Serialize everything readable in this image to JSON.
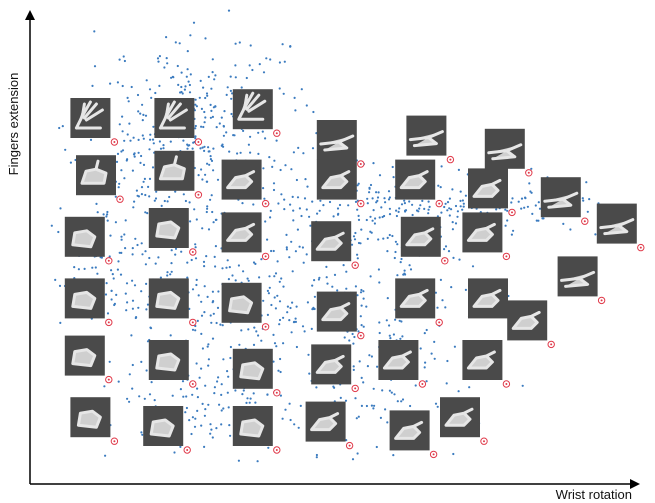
{
  "chart_data": {
    "type": "scatter",
    "xlabel": "Wrist rotation",
    "ylabel": "Fingers extension",
    "xlim": [
      0,
      1
    ],
    "ylim": [
      0,
      1
    ],
    "grid": false,
    "legend": "none",
    "point_color": "#3b7bbf",
    "marker_color": "#e03a4a",
    "thumbnail_color": "#4a4a4a",
    "hand_color": "#e6e6e6",
    "point_count": 1400,
    "points_seed": 7,
    "density_regions": [
      {
        "cx": 0.3,
        "cy": 0.8,
        "rx": 0.14,
        "ry": 0.15,
        "weight": 0.18
      },
      {
        "cx": 0.18,
        "cy": 0.55,
        "rx": 0.16,
        "ry": 0.28,
        "weight": 0.22
      },
      {
        "cx": 0.38,
        "cy": 0.4,
        "rx": 0.16,
        "ry": 0.3,
        "weight": 0.22
      },
      {
        "cx": 0.62,
        "cy": 0.58,
        "rx": 0.14,
        "ry": 0.1,
        "weight": 0.1
      },
      {
        "cx": 0.78,
        "cy": 0.6,
        "rx": 0.18,
        "ry": 0.05,
        "weight": 0.1
      },
      {
        "cx": 0.6,
        "cy": 0.25,
        "rx": 0.16,
        "ry": 0.18,
        "weight": 0.12
      },
      {
        "cx": 0.3,
        "cy": 0.15,
        "rx": 0.16,
        "ry": 0.1,
        "weight": 0.06
      }
    ],
    "thumbnails": [
      {
        "x": 0.09,
        "y": 0.8,
        "pose": "open"
      },
      {
        "x": 0.24,
        "y": 0.8,
        "pose": "open"
      },
      {
        "x": 0.38,
        "y": 0.82,
        "pose": "open"
      },
      {
        "x": 0.53,
        "y": 0.75,
        "pose": "point"
      },
      {
        "x": 0.69,
        "y": 0.76,
        "pose": "point"
      },
      {
        "x": 0.83,
        "y": 0.73,
        "pose": "point"
      },
      {
        "x": 0.1,
        "y": 0.67,
        "pose": "thumb"
      },
      {
        "x": 0.24,
        "y": 0.68,
        "pose": "thumb"
      },
      {
        "x": 0.36,
        "y": 0.66,
        "pose": "pinch"
      },
      {
        "x": 0.53,
        "y": 0.66,
        "pose": "pinch"
      },
      {
        "x": 0.67,
        "y": 0.66,
        "pose": "pinch"
      },
      {
        "x": 0.8,
        "y": 0.64,
        "pose": "pinch"
      },
      {
        "x": 0.93,
        "y": 0.62,
        "pose": "point"
      },
      {
        "x": 1.03,
        "y": 0.56,
        "pose": "point"
      },
      {
        "x": 0.08,
        "y": 0.53,
        "pose": "fist"
      },
      {
        "x": 0.23,
        "y": 0.55,
        "pose": "fist"
      },
      {
        "x": 0.36,
        "y": 0.54,
        "pose": "pinch"
      },
      {
        "x": 0.52,
        "y": 0.52,
        "pose": "pinch"
      },
      {
        "x": 0.68,
        "y": 0.53,
        "pose": "pinch"
      },
      {
        "x": 0.79,
        "y": 0.54,
        "pose": "pinch"
      },
      {
        "x": 0.96,
        "y": 0.44,
        "pose": "point"
      },
      {
        "x": 0.08,
        "y": 0.39,
        "pose": "fist"
      },
      {
        "x": 0.23,
        "y": 0.39,
        "pose": "fist"
      },
      {
        "x": 0.36,
        "y": 0.38,
        "pose": "fist"
      },
      {
        "x": 0.53,
        "y": 0.36,
        "pose": "pinch"
      },
      {
        "x": 0.67,
        "y": 0.39,
        "pose": "pinch"
      },
      {
        "x": 0.8,
        "y": 0.39,
        "pose": "pinch"
      },
      {
        "x": 0.87,
        "y": 0.34,
        "pose": "pinch"
      },
      {
        "x": 0.08,
        "y": 0.26,
        "pose": "fist"
      },
      {
        "x": 0.23,
        "y": 0.25,
        "pose": "fist"
      },
      {
        "x": 0.38,
        "y": 0.23,
        "pose": "fist"
      },
      {
        "x": 0.52,
        "y": 0.24,
        "pose": "pinch"
      },
      {
        "x": 0.64,
        "y": 0.25,
        "pose": "pinch"
      },
      {
        "x": 0.79,
        "y": 0.25,
        "pose": "pinch"
      },
      {
        "x": 0.09,
        "y": 0.12,
        "pose": "fist"
      },
      {
        "x": 0.22,
        "y": 0.1,
        "pose": "fist"
      },
      {
        "x": 0.38,
        "y": 0.1,
        "pose": "fist"
      },
      {
        "x": 0.51,
        "y": 0.11,
        "pose": "pinch"
      },
      {
        "x": 0.66,
        "y": 0.09,
        "pose": "pinch"
      },
      {
        "x": 0.75,
        "y": 0.12,
        "pose": "pinch"
      }
    ]
  }
}
